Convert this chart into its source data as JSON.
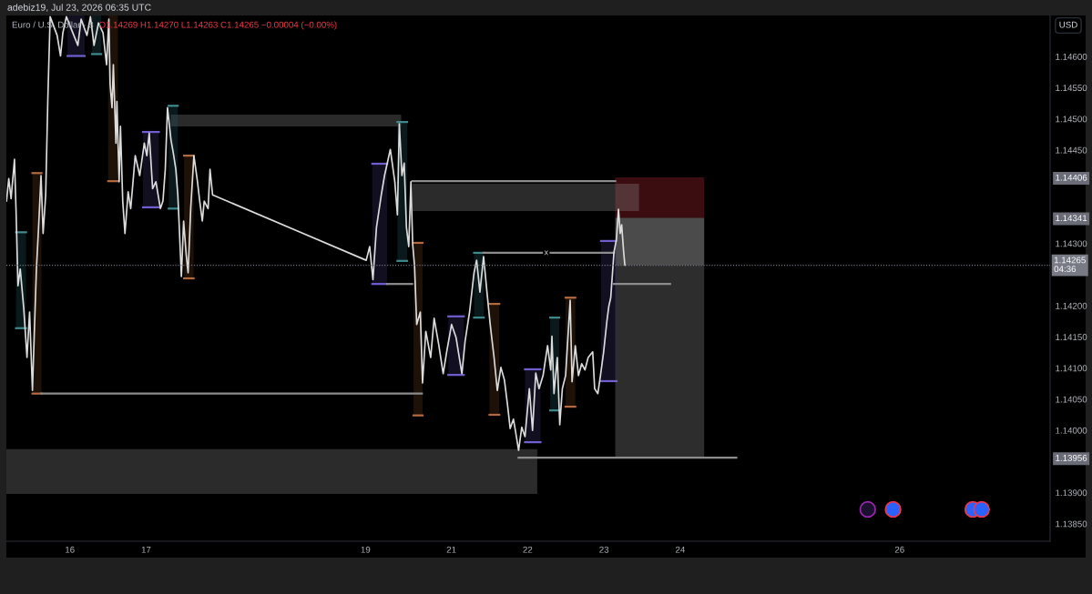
{
  "chart_data": {
    "type": "line",
    "title": "adebiz19, Jul 23, 2026 06:35 UTC",
    "subtitle": "Euro / U.S. Dollar · 3",
    "ylabel": "USD",
    "xlim": [
      "2026-07-15T04:02",
      "2026-07-28T20:20"
    ],
    "xticks": [
      {
        "value": "2026-07-16",
        "label": "16"
      },
      {
        "value": "2026-07-17",
        "label": "17"
      },
      {
        "value": "2026-07-19T21:00",
        "label": "19"
      },
      {
        "value": "2026-07-21",
        "label": "21"
      },
      {
        "value": "2026-07-22",
        "label": "22"
      },
      {
        "value": "2026-07-23",
        "label": "23"
      },
      {
        "value": "2026-07-24",
        "label": "24"
      },
      {
        "value": "2026-07-26T21:00",
        "label": "26"
      }
    ],
    "ylim": [
      1.13822,
      1.14666
    ],
    "yticks": [
      {
        "value": 1.1385,
        "label": "1.13850"
      },
      {
        "value": 1.139,
        "label": "1.13900"
      },
      1.13956,
      {
        "value": 1.14,
        "label": "1.14000"
      },
      {
        "value": 1.1405,
        "label": "1.14050"
      },
      {
        "value": 1.141,
        "label": "1.14100"
      },
      {
        "value": 1.1415,
        "label": "1.14150"
      },
      {
        "value": 1.142,
        "label": "1.14200"
      },
      {
        "value": 1.143,
        "label": "1.14300"
      },
      1.14341,
      1.14406,
      {
        "value": 1.1445,
        "label": "1.14450"
      },
      {
        "value": 1.145,
        "label": "1.14500"
      },
      {
        "value": 1.1455,
        "label": "1.14550"
      },
      {
        "value": 1.146,
        "label": "1.14600"
      }
    ],
    "grid": false,
    "series": [
      {
        "type": "line",
        "color": "#8f8f8f",
        "x": [
          "2026-07-15T04:02",
          "2026-07-22T03:01"
        ],
        "values": [
          null,
          null
        ],
        "lower": [
          1.13898,
          1.13898
        ],
        "upper": [
          1.1397,
          1.1397
        ]
      },
      {
        "type": "line",
        "color": "#8c8c8c",
        "x": [
          "2026-07-17T07:44",
          "2026-07-20T08:14"
        ],
        "values": [
          null,
          null
        ],
        "lower": [
          1.14488,
          1.14488
        ],
        "upper": [
          1.14507,
          1.14507
        ]
      },
      {
        "type": "line",
        "color": "#c52b35",
        "x": [
          "2026-07-23T03:33",
          "2026-07-24T07:32"
        ],
        "values": [
          null,
          null
        ],
        "lower": [
          1.14341,
          1.14341
        ],
        "upper": [
          1.14406,
          1.14406
        ]
      },
      {
        "type": "line",
        "color": "#fafafa",
        "x": [
          "2026-07-23T03:33",
          "2026-07-24T07:32"
        ],
        "values": [
          null,
          null
        ],
        "lower": [
          1.14265,
          1.14265
        ],
        "upper": [
          1.14341,
          1.14341
        ]
      },
      {
        "type": "line",
        "color": "#969696",
        "x": [
          "2026-07-23T03:33",
          "2026-07-24T07:32"
        ],
        "values": [
          null,
          null
        ],
        "lower": [
          1.13956,
          1.13956
        ],
        "upper": [
          1.14265,
          1.14265
        ]
      },
      {
        "type": "line",
        "color": "#8f8f8f",
        "x": [
          "2026-07-20T11:41",
          "2026-07-23T11:02"
        ],
        "values": [
          null,
          null
        ],
        "lower": [
          1.14352,
          1.14352
        ],
        "upper": [
          1.14396,
          1.14396
        ]
      },
      {
        "type": "line",
        "color": "#21575d",
        "x": [
          "2026-07-15T07:05",
          "2026-07-15T10:13"
        ],
        "values": [
          null,
          null
        ],
        "lower": [
          1.14164,
          1.14164
        ],
        "upper": [
          1.14318,
          1.14318
        ]
      },
      {
        "type": "line",
        "color": "#61391b",
        "x": [
          "2026-07-15T12:14",
          "2026-07-15T15:04"
        ],
        "values": [
          null,
          null
        ],
        "lower": [
          1.14059,
          1.14059
        ],
        "upper": [
          1.14413,
          1.14413
        ]
      },
      {
        "type": "line",
        "color": "#3c326e",
        "x": [
          "2026-07-15T23:17",
          "2026-07-16T04:38"
        ],
        "values": [
          null,
          null
        ],
        "lower": [
          1.14601,
          1.14601
        ],
        "upper": [
          1.14666,
          1.14666
        ]
      },
      {
        "type": "line",
        "color": "#21575d",
        "x": [
          "2026-07-16T06:59",
          "2026-07-16T09:50"
        ],
        "values": [
          null,
          null
        ],
        "lower": [
          1.14604,
          1.14604
        ],
        "upper": [
          1.14666,
          1.14666
        ]
      },
      {
        "type": "line",
        "color": "#61391b",
        "x": [
          "2026-07-16T12:04",
          "2026-07-16T15:07"
        ],
        "values": [
          null,
          null
        ],
        "lower": [
          1.144,
          1.144
        ],
        "upper": [
          1.14666,
          1.14666
        ]
      },
      {
        "type": "line",
        "color": "#3c326e",
        "x": [
          "2026-07-16T23:01",
          "2026-07-17T03:59"
        ],
        "values": [
          null,
          null
        ],
        "lower": [
          1.14358,
          1.14358
        ],
        "upper": [
          1.14479,
          1.14479
        ]
      },
      {
        "type": "line",
        "color": "#21575d",
        "x": [
          "2026-07-17T07:06",
          "2026-07-17T09:56"
        ],
        "values": [
          null,
          null
        ],
        "lower": [
          1.14356,
          1.14356
        ],
        "upper": [
          1.14521,
          1.14521
        ]
      },
      {
        "type": "line",
        "color": "#61391b",
        "x": [
          "2026-07-17T11:56",
          "2026-07-17T14:56"
        ],
        "values": [
          null,
          null
        ],
        "lower": [
          1.14244,
          1.14244
        ],
        "upper": [
          1.14441,
          1.14441
        ]
      },
      {
        "type": "line",
        "color": "#3c326e",
        "x": [
          "2026-07-19T23:08",
          "2026-07-20T03:48"
        ],
        "values": [
          null,
          null
        ],
        "lower": [
          1.14235,
          1.14235
        ],
        "upper": [
          1.14428,
          1.14428
        ]
      },
      {
        "type": "line",
        "color": "#21575d",
        "x": [
          "2026-07-20T07:02",
          "2026-07-20T10:05"
        ],
        "values": [
          null,
          null
        ],
        "lower": [
          1.14272,
          1.14272
        ],
        "upper": [
          1.14495,
          1.14495
        ]
      },
      {
        "type": "line",
        "color": "#61391b",
        "x": [
          "2026-07-20T12:06",
          "2026-07-20T14:56"
        ],
        "values": [
          null,
          null
        ],
        "lower": [
          1.14024,
          1.14024
        ],
        "upper": [
          1.14301,
          1.14301
        ]
      },
      {
        "type": "line",
        "color": "#3c326e",
        "x": [
          "2026-07-20T23:02",
          "2026-07-21T03:55"
        ],
        "values": [
          null,
          null
        ],
        "lower": [
          1.14089,
          1.14089
        ],
        "upper": [
          1.14183,
          1.14183
        ]
      },
      {
        "type": "line",
        "color": "#21575d",
        "x": [
          "2026-07-21T07:09",
          "2026-07-21T10:12"
        ],
        "values": [
          null,
          null
        ],
        "lower": [
          1.14181,
          1.14181
        ],
        "upper": [
          1.14285,
          1.14285
        ]
      },
      {
        "type": "line",
        "color": "#61391b",
        "x": [
          "2026-07-21T12:01",
          "2026-07-21T15:04"
        ],
        "values": [
          null,
          null
        ],
        "lower": [
          1.14025,
          1.14025
        ],
        "upper": [
          1.14203,
          1.14203
        ]
      },
      {
        "type": "line",
        "color": "#3c326e",
        "x": [
          "2026-07-21T23:10",
          "2026-07-22T04:02"
        ],
        "values": [
          null,
          null
        ],
        "lower": [
          1.13981,
          1.13981
        ],
        "upper": [
          1.14098,
          1.14098
        ]
      },
      {
        "type": "line",
        "color": "#21575d",
        "x": [
          "2026-07-22T07:05",
          "2026-07-22T09:55"
        ],
        "values": [
          null,
          null
        ],
        "lower": [
          1.14032,
          1.14032
        ],
        "upper": [
          1.14181,
          1.14181
        ]
      },
      {
        "type": "line",
        "color": "#61391b",
        "x": [
          "2026-07-22T11:56",
          "2026-07-22T14:59"
        ],
        "values": [
          null,
          null
        ],
        "lower": [
          1.14038,
          1.14038
        ],
        "upper": [
          1.14213,
          1.14213
        ]
      },
      {
        "type": "line",
        "color": "#3c326e",
        "x": [
          "2026-07-22T23:05",
          "2026-07-23T03:58"
        ],
        "values": [
          null,
          null
        ],
        "lower": [
          1.14079,
          1.14079
        ],
        "upper": [
          1.14304,
          1.14304
        ]
      },
      {
        "type": "line",
        "color": "#3f8a8c",
        "x": [
          "2026-07-15T07:05",
          "2026-07-15T10:13"
        ],
        "values": [
          1.14318,
          1.14318
        ]
      },
      {
        "type": "line",
        "color": "#3f8a8c",
        "x": [
          "2026-07-15T07:05",
          "2026-07-15T10:13"
        ],
        "values": [
          1.14164,
          1.14164
        ]
      },
      {
        "type": "line",
        "color": "#b46a3c",
        "x": [
          "2026-07-15T12:14",
          "2026-07-15T15:04"
        ],
        "values": [
          1.14413,
          1.14413
        ]
      },
      {
        "type": "line",
        "color": "#b46a3c",
        "x": [
          "2026-07-15T12:14",
          "2026-07-15T15:04"
        ],
        "values": [
          1.14059,
          1.14059
        ]
      },
      {
        "type": "line",
        "color": "#6f5fd1",
        "x": [
          "2026-07-15T23:17",
          "2026-07-16T04:38"
        ],
        "values": [
          1.14601,
          1.14601
        ]
      },
      {
        "type": "line",
        "color": "#3f8a8c",
        "x": [
          "2026-07-16T06:59",
          "2026-07-16T09:50"
        ],
        "values": [
          1.14604,
          1.14604
        ]
      },
      {
        "type": "line",
        "color": "#b46a3c",
        "x": [
          "2026-07-16T12:04",
          "2026-07-16T15:07"
        ],
        "values": [
          1.144,
          1.144
        ]
      },
      {
        "type": "line",
        "color": "#6f5fd1",
        "x": [
          "2026-07-16T23:01",
          "2026-07-17T03:59"
        ],
        "values": [
          1.14479,
          1.14479
        ]
      },
      {
        "type": "line",
        "color": "#6f5fd1",
        "x": [
          "2026-07-16T23:01",
          "2026-07-17T03:59"
        ],
        "values": [
          1.14358,
          1.14358
        ]
      },
      {
        "type": "line",
        "color": "#3f8a8c",
        "x": [
          "2026-07-17T07:06",
          "2026-07-17T09:56"
        ],
        "values": [
          1.14521,
          1.14521
        ]
      },
      {
        "type": "line",
        "color": "#3f8a8c",
        "x": [
          "2026-07-17T07:06",
          "2026-07-17T09:56"
        ],
        "values": [
          1.14356,
          1.14356
        ]
      },
      {
        "type": "line",
        "color": "#b46a3c",
        "x": [
          "2026-07-17T11:56",
          "2026-07-17T14:56"
        ],
        "values": [
          1.14441,
          1.14441
        ]
      },
      {
        "type": "line",
        "color": "#b46a3c",
        "x": [
          "2026-07-17T11:56",
          "2026-07-17T14:56"
        ],
        "values": [
          1.14244,
          1.14244
        ]
      },
      {
        "type": "line",
        "color": "#6f5fd1",
        "x": [
          "2026-07-19T23:08",
          "2026-07-20T03:48"
        ],
        "values": [
          1.14428,
          1.14428
        ]
      },
      {
        "type": "line",
        "color": "#6f5fd1",
        "x": [
          "2026-07-19T23:08",
          "2026-07-20T03:48"
        ],
        "values": [
          1.14235,
          1.14235
        ]
      },
      {
        "type": "line",
        "color": "#3f8a8c",
        "x": [
          "2026-07-20T07:02",
          "2026-07-20T10:05"
        ],
        "values": [
          1.14495,
          1.14495
        ]
      },
      {
        "type": "line",
        "color": "#3f8a8c",
        "x": [
          "2026-07-20T07:02",
          "2026-07-20T10:05"
        ],
        "values": [
          1.14272,
          1.14272
        ]
      },
      {
        "type": "line",
        "color": "#b46a3c",
        "x": [
          "2026-07-20T12:06",
          "2026-07-20T14:56"
        ],
        "values": [
          1.14301,
          1.14301
        ]
      },
      {
        "type": "line",
        "color": "#b46a3c",
        "x": [
          "2026-07-20T12:06",
          "2026-07-20T14:56"
        ],
        "values": [
          1.14024,
          1.14024
        ]
      },
      {
        "type": "line",
        "color": "#6f5fd1",
        "x": [
          "2026-07-20T23:02",
          "2026-07-21T03:55"
        ],
        "values": [
          1.14183,
          1.14183
        ]
      },
      {
        "type": "line",
        "color": "#6f5fd1",
        "x": [
          "2026-07-20T23:02",
          "2026-07-21T03:55"
        ],
        "values": [
          1.14089,
          1.14089
        ]
      },
      {
        "type": "line",
        "color": "#3f8a8c",
        "x": [
          "2026-07-21T07:09",
          "2026-07-21T10:12"
        ],
        "values": [
          1.14285,
          1.14285
        ]
      },
      {
        "type": "line",
        "color": "#3f8a8c",
        "x": [
          "2026-07-21T07:09",
          "2026-07-21T10:12"
        ],
        "values": [
          1.14181,
          1.14181
        ]
      },
      {
        "type": "line",
        "color": "#b46a3c",
        "x": [
          "2026-07-21T12:01",
          "2026-07-21T15:04"
        ],
        "values": [
          1.14203,
          1.14203
        ]
      },
      {
        "type": "line",
        "color": "#b46a3c",
        "x": [
          "2026-07-21T12:01",
          "2026-07-21T15:04"
        ],
        "values": [
          1.14025,
          1.14025
        ]
      },
      {
        "type": "line",
        "color": "#6f5fd1",
        "x": [
          "2026-07-21T23:10",
          "2026-07-22T04:02"
        ],
        "values": [
          1.14098,
          1.14098
        ]
      },
      {
        "type": "line",
        "color": "#6f5fd1",
        "x": [
          "2026-07-21T23:10",
          "2026-07-22T04:02"
        ],
        "values": [
          1.13981,
          1.13981
        ]
      },
      {
        "type": "line",
        "color": "#3f8a8c",
        "x": [
          "2026-07-22T07:05",
          "2026-07-22T09:55"
        ],
        "values": [
          1.14181,
          1.14181
        ]
      },
      {
        "type": "line",
        "color": "#3f8a8c",
        "x": [
          "2026-07-22T07:05",
          "2026-07-22T09:55"
        ],
        "values": [
          1.14032,
          1.14032
        ]
      },
      {
        "type": "line",
        "color": "#b46a3c",
        "x": [
          "2026-07-22T11:56",
          "2026-07-22T14:59"
        ],
        "values": [
          1.14213,
          1.14213
        ]
      },
      {
        "type": "line",
        "color": "#b46a3c",
        "x": [
          "2026-07-22T11:56",
          "2026-07-22T14:59"
        ],
        "values": [
          1.14038,
          1.14038
        ]
      },
      {
        "type": "line",
        "color": "#6f5fd1",
        "x": [
          "2026-07-22T23:05",
          "2026-07-23T03:58"
        ],
        "values": [
          1.14304,
          1.14304
        ]
      },
      {
        "type": "line",
        "color": "#6f5fd1",
        "x": [
          "2026-07-22T23:05",
          "2026-07-23T03:58"
        ],
        "values": [
          1.14079,
          1.14079
        ]
      },
      {
        "type": "line",
        "color": "#8c8c8c",
        "x": [
          "2026-07-15T15:04",
          "2026-07-20T14:44"
        ],
        "values": [
          1.14059,
          1.14059
        ]
      },
      {
        "type": "line",
        "color": "#8c8c8c",
        "x": [
          "2026-07-20T03:48",
          "2026-07-20T11:41"
        ],
        "values": [
          1.14235,
          1.14235
        ]
      },
      {
        "type": "line",
        "color": "#8c8c8c",
        "x": [
          "2026-07-21T10:12",
          "2026-07-23T03:09"
        ],
        "values": [
          1.14285,
          1.14285
        ]
      },
      {
        "type": "line",
        "color": "#8c8c8c",
        "x": [
          "2026-07-23T03:09",
          "2026-07-23T20:48"
        ],
        "values": [
          1.14235,
          1.14235
        ]
      },
      {
        "type": "line",
        "color": "#8c8c8c",
        "x": [
          "2026-07-21T21:09",
          "2026-07-24T17:38"
        ],
        "values": [
          1.13956,
          1.13956
        ]
      },
      {
        "type": "line",
        "color": "#8c8c8c",
        "x": [
          "2026-07-20T11:41",
          "2026-07-23T03:33"
        ],
        "values": [
          1.144,
          1.144
        ]
      },
      {
        "color": "#dcdcdc",
        "x": [
          "2026-07-15T04:05",
          "2026-07-15T04:47",
          "2026-07-15T05:31",
          "2026-07-15T06:35",
          "2026-07-15T07:05",
          "2026-07-15T07:41",
          "2026-07-15T08:24",
          "2026-07-15T09:30",
          "2026-07-15T10:31",
          "2026-07-15T11:20",
          "2026-07-15T12:14",
          "2026-07-15T13:29",
          "2026-07-15T14:10",
          "2026-07-15T14:56",
          "2026-07-15T15:35",
          "2026-07-15T16:24",
          "2026-07-15T17:05",
          "2026-07-15T17:48",
          "2026-07-15T20:00",
          "2026-07-15T21:04",
          "2026-07-15T21:48",
          "2026-07-15T22:54",
          "2026-07-16T02:31",
          "2026-07-16T03:33",
          "2026-07-16T05:23",
          "2026-07-16T06:29",
          "2026-07-16T07:36",
          "2026-07-16T09:01",
          "2026-07-16T10:26",
          "2026-07-16T11:33",
          "2026-07-16T12:16",
          "2026-07-16T12:40",
          "2026-07-16T13:16",
          "2026-07-16T13:41",
          "2026-07-16T14:30",
          "2026-07-16T14:48",
          "2026-07-16T15:30",
          "2026-07-16T15:55",
          "2026-07-16T16:38",
          "2026-07-16T17:20",
          "2026-07-16T18:20",
          "2026-07-16T19:09",
          "2026-07-16T20:34",
          "2026-07-16T21:59",
          "2026-07-16T23:25",
          "2026-07-17T00:13",
          "2026-07-17T00:58",
          "2026-07-17T02:02",
          "2026-07-17T03:04",
          "2026-07-17T04:29",
          "2026-07-17T05:17",
          "2026-07-17T06:01",
          "2026-07-17T06:43",
          "2026-07-17T07:49",
          "2026-07-17T08:33",
          "2026-07-17T09:20",
          "2026-07-17T09:58",
          "2026-07-17T10:22",
          "2026-07-17T11:05",
          "2026-07-17T11:47",
          "2026-07-17T12:35",
          "2026-07-17T13:12",
          "2026-07-17T14:01",
          "2026-07-17T15:01",
          "2026-07-17T16:09",
          "2026-07-17T16:51",
          "2026-07-17T17:40",
          "2026-07-17T18:16",
          "2026-07-17T19:29",
          "2026-07-17T20:05",
          "2026-07-17T20:54",
          "2026-07-19T21:13",
          "2026-07-19T22:19",
          "2026-07-19T23:20",
          "2026-07-20T00:27",
          "2026-07-20T01:58",
          "2026-07-20T02:59",
          "2026-07-20T04:48",
          "2026-07-20T06:13",
          "2026-07-20T07:02",
          "2026-07-20T07:38",
          "2026-07-20T08:27",
          "2026-07-20T09:10",
          "2026-07-20T09:52",
          "2026-07-20T10:36",
          "2026-07-20T11:17",
          "2026-07-20T11:50",
          "2026-07-20T12:26",
          "2026-07-20T13:06",
          "2026-07-20T14:14",
          "2026-07-20T14:56",
          "2026-07-20T15:58",
          "2026-07-20T17:30",
          "2026-07-20T18:35",
          "2026-07-20T20:01",
          "2026-07-20T21:26",
          "2026-07-20T22:34",
          "2026-07-21T00:04",
          "2026-07-21T01:29",
          "2026-07-21T03:19",
          "2026-07-21T04:19",
          "2026-07-21T05:44",
          "2026-07-21T07:08",
          "2026-07-21T07:57",
          "2026-07-21T08:59",
          "2026-07-21T10:08",
          "2026-07-21T11:12",
          "2026-07-21T12:13",
          "2026-07-21T13:26",
          "2026-07-21T14:27",
          "2026-07-21T15:35",
          "2026-07-21T16:41",
          "2026-07-21T17:41",
          "2026-07-21T18:30",
          "2026-07-21T19:32",
          "2026-07-21T20:08",
          "2026-07-21T21:09",
          "2026-07-21T22:09",
          "2026-07-21T23:10",
          "2026-07-22T00:32",
          "2026-07-22T01:32",
          "2026-07-22T02:33",
          "2026-07-22T03:35",
          "2026-07-22T04:51",
          "2026-07-22T06:16",
          "2026-07-22T07:16",
          "2026-07-22T07:38",
          "2026-07-22T08:17",
          "2026-07-22T09:19",
          "2026-07-22T10:06",
          "2026-07-22T10:55",
          "2026-07-22T11:56",
          "2026-07-22T13:22",
          "2026-07-22T13:58",
          "2026-07-22T14:59",
          "2026-07-22T15:59",
          "2026-07-22T17:01",
          "2026-07-22T18:01",
          "2026-07-22T19:02",
          "2026-07-22T20:28",
          "2026-07-22T21:04",
          "2026-07-22T22:05",
          "2026-07-22T22:54",
          "2026-07-22T23:54",
          "2026-07-23T00:55",
          "2026-07-23T01:31",
          "2026-07-23T02:08",
          "2026-07-23T02:33",
          "2026-07-23T03:09",
          "2026-07-23T03:56",
          "2026-07-23T04:34",
          "2026-07-23T05:07",
          "2026-07-23T05:34",
          "2026-07-23T06:12",
          "2026-07-23T06:35"
        ],
        "values": [
          1.14368,
          1.14404,
          1.14372,
          1.14435,
          1.14352,
          1.14232,
          1.14259,
          1.14196,
          1.14117,
          1.1419,
          1.14064,
          1.14259,
          1.14326,
          1.14409,
          1.14316,
          1.14378,
          1.14534,
          1.14664,
          1.14634,
          1.14601,
          1.14638,
          1.14664,
          1.14618,
          1.1466,
          1.14634,
          1.14664,
          1.14618,
          1.14654,
          1.14638,
          1.14587,
          1.1466,
          1.14555,
          1.14518,
          1.14587,
          1.14461,
          1.14528,
          1.14399,
          1.14488,
          1.14368,
          1.14316,
          1.14383,
          1.14356,
          1.14441,
          1.14409,
          1.14461,
          1.14441,
          1.14477,
          1.14388,
          1.14399,
          1.14356,
          1.14368,
          1.14419,
          1.14518,
          1.14466,
          1.14445,
          1.14419,
          1.14378,
          1.14332,
          1.14247,
          1.14336,
          1.14283,
          1.14253,
          1.14356,
          1.14441,
          1.14399,
          1.14368,
          1.14336,
          1.14368,
          1.14356,
          1.14419,
          1.14378,
          1.14273,
          1.14295,
          1.14242,
          1.14326,
          1.14378,
          1.14409,
          1.14451,
          1.14399,
          1.14346,
          1.14492,
          1.14409,
          1.14429,
          1.14326,
          1.14295,
          1.14399,
          1.14299,
          1.14263,
          1.1417,
          1.1419,
          1.14076,
          1.14159,
          1.14117,
          1.1418,
          1.14138,
          1.14091,
          1.14127,
          1.1417,
          1.14149,
          1.14091,
          1.14143,
          1.1419,
          1.14253,
          1.14273,
          1.14222,
          1.14279,
          1.14222,
          1.1417,
          1.14117,
          1.14064,
          1.14101,
          1.14081,
          1.1404,
          1.14003,
          1.14018,
          1.14,
          1.13968,
          1.14005,
          1.1399,
          1.14067,
          1.14,
          1.14092,
          1.14067,
          1.14088,
          1.14136,
          1.14097,
          1.14151,
          1.14059,
          1.14117,
          1.14009,
          1.14067,
          1.14088,
          1.14209,
          1.14078,
          1.14136,
          1.14088,
          1.14107,
          1.14097,
          1.14117,
          1.14126,
          1.14067,
          1.14059,
          1.14088,
          1.14126,
          1.14175,
          1.14199,
          1.14213,
          1.14243,
          1.14286,
          1.14307,
          1.14355,
          1.14316,
          1.1433,
          1.14286,
          1.14265
        ]
      }
    ],
    "ref_lines": [
      {
        "axis": "y",
        "value": 1.14265,
        "label": "1.14265\n04:36",
        "line_style": "dotted",
        "color": "#787b86"
      }
    ],
    "annotations": [
      "O1.14269 H1.14270 L1.14263 C1.14265 −0.00004 (−0.00%)",
      {
        "text": "x",
        "x": "2026-07-22T05:51",
        "y": 1.14285
      }
    ]
  }
}
